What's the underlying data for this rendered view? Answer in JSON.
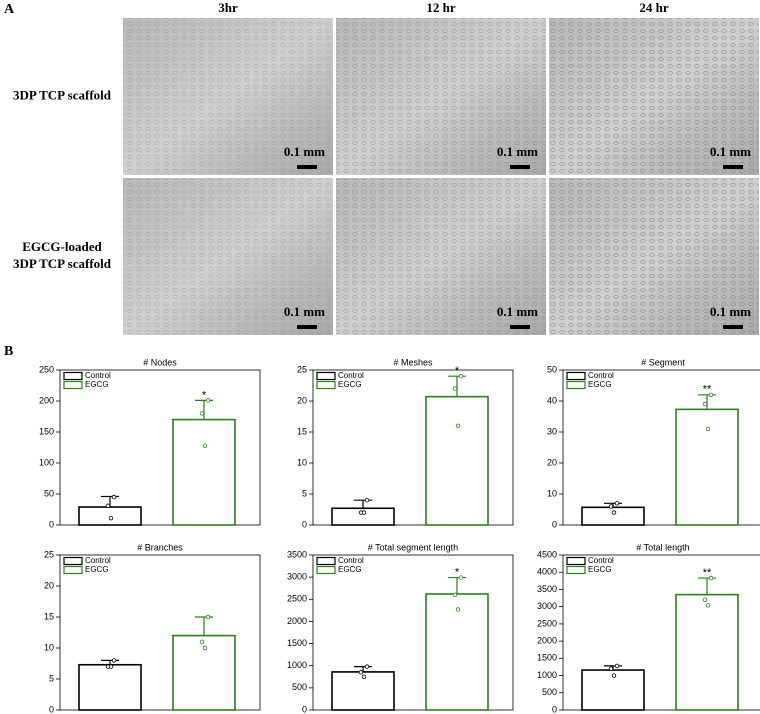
{
  "panel_a": {
    "label": "A",
    "columns": [
      "3hr",
      "12 hr",
      "24 hr"
    ],
    "rows": [
      [
        "3DP TCP scaffold"
      ],
      [
        "EGCG-loaded",
        "3DP TCP scaffold"
      ]
    ],
    "scale_bar": "0.1 mm"
  },
  "panel_b": {
    "label": "B"
  },
  "chart_data": [
    {
      "type": "bar",
      "title": "# Nodes",
      "ylim": [
        0,
        250
      ],
      "yticks": [
        0,
        50,
        100,
        150,
        200,
        250
      ],
      "series": [
        {
          "name": "Control",
          "color": "#000000",
          "values": [
            29
          ],
          "errors": [
            17
          ],
          "points": [
            45,
            31,
            11
          ]
        },
        {
          "name": "EGCG",
          "color": "#2e7d1f",
          "values": [
            170
          ],
          "errors": [
            31
          ],
          "points": [
            201,
            180,
            128
          ],
          "significance": "*"
        }
      ]
    },
    {
      "type": "bar",
      "title": "# Meshes",
      "ylim": [
        0,
        25
      ],
      "yticks": [
        0,
        5,
        10,
        15,
        20,
        25
      ],
      "series": [
        {
          "name": "Control",
          "color": "#000000",
          "values": [
            2.7
          ],
          "errors": [
            1.3
          ],
          "points": [
            4,
            2,
            2
          ]
        },
        {
          "name": "EGCG",
          "color": "#2e7d1f",
          "values": [
            20.7
          ],
          "errors": [
            3.3
          ],
          "points": [
            24,
            22,
            16
          ],
          "significance": "*"
        }
      ]
    },
    {
      "type": "bar",
      "title": "# Segment",
      "ylim": [
        0,
        50
      ],
      "yticks": [
        0,
        10,
        20,
        30,
        40,
        50
      ],
      "series": [
        {
          "name": "Control",
          "color": "#000000",
          "values": [
            5.7
          ],
          "errors": [
            1.3
          ],
          "points": [
            7,
            6,
            4
          ]
        },
        {
          "name": "EGCG",
          "color": "#2e7d1f",
          "values": [
            37.3
          ],
          "errors": [
            4.7
          ],
          "points": [
            42,
            39,
            31
          ],
          "significance": "**"
        }
      ]
    },
    {
      "type": "bar",
      "title": "# Branches",
      "ylim": [
        0,
        25
      ],
      "yticks": [
        0,
        5,
        10,
        15,
        20,
        25
      ],
      "series": [
        {
          "name": "Control",
          "color": "#000000",
          "values": [
            7.3
          ],
          "errors": [
            0.7
          ],
          "points": [
            8,
            7,
            7
          ]
        },
        {
          "name": "EGCG",
          "color": "#2e7d1f",
          "values": [
            12
          ],
          "errors": [
            3
          ],
          "points": [
            15,
            11,
            10
          ]
        }
      ]
    },
    {
      "type": "bar",
      "title": "# Total segment length",
      "ylim": [
        0,
        3500
      ],
      "yticks": [
        0,
        500,
        1000,
        1500,
        2000,
        2500,
        3000,
        3500
      ],
      "series": [
        {
          "name": "Control",
          "color": "#000000",
          "values": [
            860
          ],
          "errors": [
            120
          ],
          "points": [
            980,
            850,
            750
          ]
        },
        {
          "name": "EGCG",
          "color": "#2e7d1f",
          "values": [
            2620
          ],
          "errors": [
            370
          ],
          "points": [
            2990,
            2600,
            2270
          ],
          "significance": "*"
        }
      ]
    },
    {
      "type": "bar",
      "title": "# Total length",
      "ylim": [
        0,
        4500
      ],
      "yticks": [
        0,
        500,
        1000,
        1500,
        2000,
        2500,
        3000,
        3500,
        4000,
        4500
      ],
      "series": [
        {
          "name": "Control",
          "color": "#000000",
          "values": [
            1160
          ],
          "errors": [
            120
          ],
          "points": [
            1280,
            1200,
            1000
          ]
        },
        {
          "name": "EGCG",
          "color": "#2e7d1f",
          "values": [
            3350
          ],
          "errors": [
            480
          ],
          "points": [
            3830,
            3200,
            3040
          ],
          "significance": "**"
        }
      ]
    }
  ]
}
